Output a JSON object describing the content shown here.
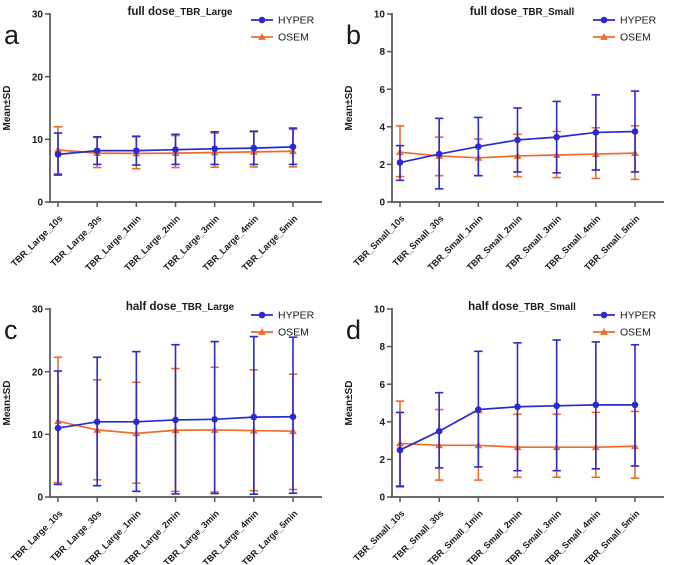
{
  "figure": {
    "background": "#ffffff",
    "text_color": "#1a1a1a",
    "axis_color": "#54565a",
    "series_colors": {
      "HYPER": "#2a2ad0",
      "OSEM": "#ef6b2a"
    },
    "legend_labels": [
      "HYPER",
      "OSEM"
    ]
  },
  "chart_data": [
    {
      "type": "line",
      "panel_letter": "a",
      "title_main": "full dose",
      "title_sub": "_TBR_Large",
      "ylabel": "Mean±SD",
      "ylim": [
        0,
        30
      ],
      "yticks": [
        0,
        10,
        20,
        30
      ],
      "legend_position": "top-right",
      "grid": false,
      "categories": [
        "TBR_Large_10s",
        "TBR_Large_30s",
        "TBR_Large_1min",
        "TBR_Large_2min",
        "TBR_Large_3min",
        "TBR_Large_4min",
        "TBR_Large_5min"
      ],
      "series": [
        {
          "name": "OSEM",
          "marker": "triangle",
          "color": "#ef6b2a",
          "means": [
            8.3,
            7.8,
            7.75,
            7.8,
            7.9,
            8.0,
            8.1
          ],
          "lo": [
            4.5,
            5.5,
            5.3,
            5.5,
            5.55,
            5.6,
            5.6
          ],
          "hi": [
            12.0,
            10.3,
            10.4,
            10.6,
            11.0,
            11.2,
            11.6
          ]
        },
        {
          "name": "HYPER",
          "marker": "circle",
          "color": "#2a2ad0",
          "means": [
            7.6,
            8.2,
            8.2,
            8.35,
            8.5,
            8.6,
            8.8
          ],
          "lo": [
            4.3,
            6.0,
            5.9,
            6.0,
            6.0,
            6.0,
            6.0
          ],
          "hi": [
            11.0,
            10.4,
            10.5,
            10.8,
            11.2,
            11.3,
            11.8
          ]
        }
      ]
    },
    {
      "type": "line",
      "panel_letter": "b",
      "title_main": "full dose",
      "title_sub": "_TBR_Small",
      "ylabel": "Mean±SD",
      "ylim": [
        0,
        10
      ],
      "yticks": [
        0,
        2,
        4,
        6,
        8,
        10
      ],
      "legend_position": "top-right",
      "grid": false,
      "categories": [
        "TBR_Small_10s",
        "TBR_Small_30s",
        "TBR_Small_1min",
        "TBR_Small_2min",
        "TBR_Small_3min",
        "TBR_Small_4min",
        "TBR_Small_5min"
      ],
      "series": [
        {
          "name": "OSEM",
          "marker": "triangle",
          "color": "#ef6b2a",
          "means": [
            2.65,
            2.45,
            2.35,
            2.45,
            2.5,
            2.55,
            2.6
          ],
          "lo": [
            1.35,
            1.4,
            1.4,
            1.35,
            1.3,
            1.25,
            1.2
          ],
          "hi": [
            4.05,
            3.45,
            3.35,
            3.6,
            3.75,
            3.95,
            4.05
          ]
        },
        {
          "name": "HYPER",
          "marker": "circle",
          "color": "#2a2ad0",
          "means": [
            2.1,
            2.55,
            2.95,
            3.3,
            3.45,
            3.7,
            3.75
          ],
          "lo": [
            1.15,
            0.7,
            1.4,
            1.6,
            1.55,
            1.7,
            1.6
          ],
          "hi": [
            3.0,
            4.45,
            4.5,
            5.0,
            5.35,
            5.7,
            5.9
          ]
        }
      ]
    },
    {
      "type": "line",
      "panel_letter": "c",
      "title_main": "half dose",
      "title_sub": "_TBR_Large",
      "ylabel": "Mean±SD",
      "ylim": [
        0,
        30
      ],
      "yticks": [
        0,
        10,
        20,
        30
      ],
      "legend_position": "top-right",
      "grid": false,
      "categories": [
        "TBR_Large_10s",
        "TBR_Large_30s",
        "TBR_Large_1min",
        "TBR_Large_2min",
        "TBR_Large_3min",
        "TBR_Large_4min",
        "TBR_Large_5min"
      ],
      "series": [
        {
          "name": "OSEM",
          "marker": "triangle",
          "color": "#ef6b2a",
          "means": [
            12.1,
            10.7,
            10.15,
            10.65,
            10.7,
            10.6,
            10.5
          ],
          "lo": [
            2.3,
            2.75,
            2.2,
            0.9,
            0.8,
            1.0,
            1.2
          ],
          "hi": [
            22.3,
            18.7,
            18.3,
            20.5,
            20.7,
            20.3,
            19.6
          ]
        },
        {
          "name": "HYPER",
          "marker": "circle",
          "color": "#2a2ad0",
          "means": [
            11.0,
            12.0,
            12.0,
            12.3,
            12.4,
            12.75,
            12.8
          ],
          "lo": [
            2.0,
            1.8,
            0.9,
            0.5,
            0.55,
            0.45,
            0.6
          ],
          "hi": [
            20.1,
            22.3,
            23.2,
            24.3,
            24.8,
            25.6,
            25.5
          ]
        }
      ]
    },
    {
      "type": "line",
      "panel_letter": "d",
      "title_main": "half dose",
      "title_sub": "_TBR_Small",
      "ylabel": "Mean±SD",
      "ylim": [
        0,
        10
      ],
      "yticks": [
        0,
        2,
        4,
        6,
        8,
        10
      ],
      "legend_position": "top-right",
      "grid": false,
      "categories": [
        "TBR_Small_10s",
        "TBR_Small_30s",
        "TBR_Small_1min",
        "TBR_Small_2min",
        "TBR_Small_3min",
        "TBR_Small_4min",
        "TBR_Small_5min"
      ],
      "series": [
        {
          "name": "OSEM",
          "marker": "triangle",
          "color": "#ef6b2a",
          "means": [
            2.85,
            2.75,
            2.75,
            2.65,
            2.65,
            2.65,
            2.7
          ],
          "lo": [
            0.6,
            0.9,
            0.9,
            1.05,
            1.05,
            1.05,
            1.0
          ],
          "hi": [
            5.1,
            4.65,
            4.5,
            4.4,
            4.4,
            4.5,
            4.55
          ]
        },
        {
          "name": "HYPER",
          "marker": "circle",
          "color": "#2a2ad0",
          "means": [
            2.5,
            3.5,
            4.65,
            4.8,
            4.85,
            4.9,
            4.9
          ],
          "lo": [
            0.55,
            1.55,
            1.6,
            1.4,
            1.4,
            1.5,
            1.65
          ],
          "hi": [
            4.5,
            5.55,
            7.75,
            8.2,
            8.35,
            8.25,
            8.1
          ]
        }
      ]
    }
  ]
}
